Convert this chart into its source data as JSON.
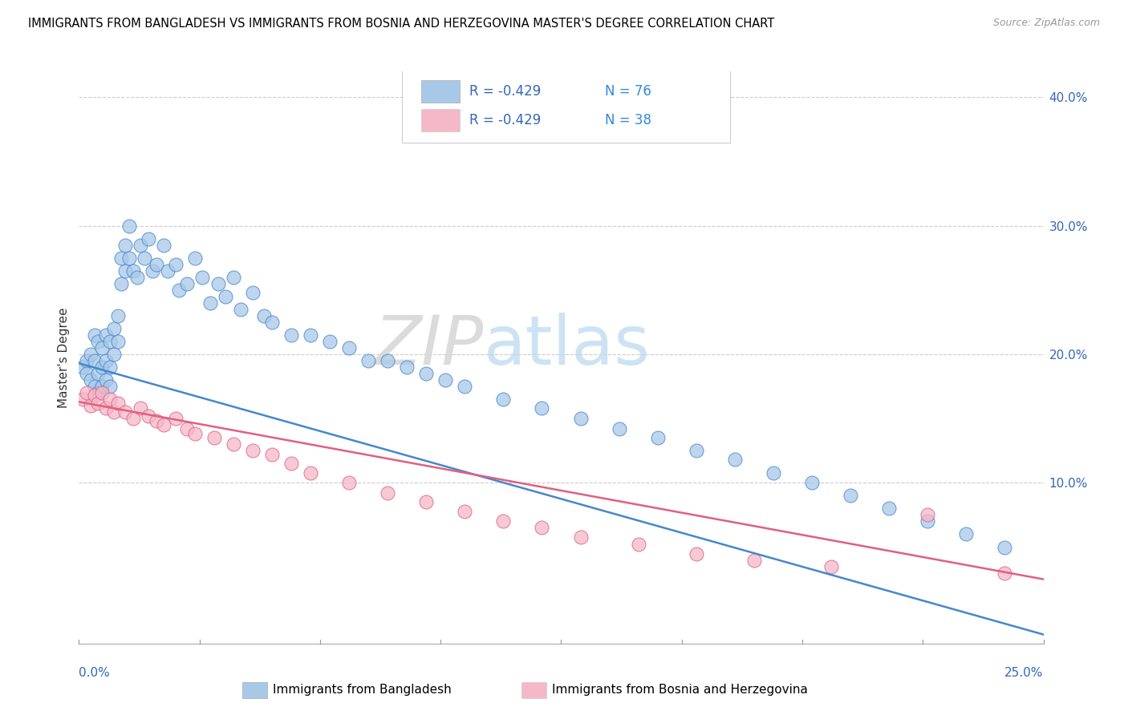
{
  "title": "IMMIGRANTS FROM BANGLADESH VS IMMIGRANTS FROM BOSNIA AND HERZEGOVINA MASTER'S DEGREE CORRELATION CHART",
  "source": "Source: ZipAtlas.com",
  "ylabel": "Master's Degree",
  "right_yticklabels": [
    "",
    "10.0%",
    "20.0%",
    "30.0%",
    "40.0%"
  ],
  "right_yticks": [
    0.0,
    0.1,
    0.2,
    0.3,
    0.4
  ],
  "xmin": 0.0,
  "xmax": 0.25,
  "ymin": -0.025,
  "ymax": 0.42,
  "legend_label1": "Immigrants from Bangladesh",
  "legend_label2": "Immigrants from Bosnia and Herzegovina",
  "color_blue": "#a8c8e8",
  "color_pink": "#f4b8c8",
  "color_blue_line": "#4488cc",
  "color_pink_line": "#e06080",
  "color_r_text": "#3366bb",
  "color_n_text": "#3388dd",
  "watermark_zip": "ZIP",
  "watermark_atlas": "atlas",
  "blue_line_x": [
    0.0,
    0.25
  ],
  "blue_line_y": [
    0.193,
    -0.018
  ],
  "pink_line_x": [
    0.0,
    0.25
  ],
  "pink_line_y": [
    0.163,
    0.025
  ],
  "blue_x": [
    0.001,
    0.002,
    0.002,
    0.003,
    0.003,
    0.004,
    0.004,
    0.004,
    0.005,
    0.005,
    0.005,
    0.006,
    0.006,
    0.006,
    0.007,
    0.007,
    0.007,
    0.008,
    0.008,
    0.008,
    0.009,
    0.009,
    0.01,
    0.01,
    0.011,
    0.011,
    0.012,
    0.012,
    0.013,
    0.013,
    0.014,
    0.015,
    0.016,
    0.017,
    0.018,
    0.019,
    0.02,
    0.022,
    0.023,
    0.025,
    0.026,
    0.028,
    0.03,
    0.032,
    0.034,
    0.036,
    0.038,
    0.04,
    0.042,
    0.045,
    0.048,
    0.05,
    0.055,
    0.06,
    0.065,
    0.07,
    0.075,
    0.08,
    0.085,
    0.09,
    0.095,
    0.1,
    0.11,
    0.12,
    0.13,
    0.14,
    0.15,
    0.16,
    0.17,
    0.18,
    0.19,
    0.2,
    0.21,
    0.22,
    0.23,
    0.24
  ],
  "blue_y": [
    0.19,
    0.195,
    0.185,
    0.2,
    0.18,
    0.215,
    0.195,
    0.175,
    0.21,
    0.185,
    0.17,
    0.205,
    0.19,
    0.175,
    0.215,
    0.195,
    0.18,
    0.21,
    0.19,
    0.175,
    0.22,
    0.2,
    0.23,
    0.21,
    0.275,
    0.255,
    0.285,
    0.265,
    0.3,
    0.275,
    0.265,
    0.26,
    0.285,
    0.275,
    0.29,
    0.265,
    0.27,
    0.285,
    0.265,
    0.27,
    0.25,
    0.255,
    0.275,
    0.26,
    0.24,
    0.255,
    0.245,
    0.26,
    0.235,
    0.248,
    0.23,
    0.225,
    0.215,
    0.215,
    0.21,
    0.205,
    0.195,
    0.195,
    0.19,
    0.185,
    0.18,
    0.175,
    0.165,
    0.158,
    0.15,
    0.142,
    0.135,
    0.125,
    0.118,
    0.108,
    0.1,
    0.09,
    0.08,
    0.07,
    0.06,
    0.05
  ],
  "pink_x": [
    0.001,
    0.002,
    0.003,
    0.004,
    0.005,
    0.006,
    0.007,
    0.008,
    0.009,
    0.01,
    0.012,
    0.014,
    0.016,
    0.018,
    0.02,
    0.022,
    0.025,
    0.028,
    0.03,
    0.035,
    0.04,
    0.045,
    0.05,
    0.055,
    0.06,
    0.07,
    0.08,
    0.09,
    0.1,
    0.11,
    0.12,
    0.13,
    0.145,
    0.16,
    0.175,
    0.195,
    0.22,
    0.24
  ],
  "pink_y": [
    0.165,
    0.17,
    0.16,
    0.168,
    0.162,
    0.17,
    0.158,
    0.165,
    0.155,
    0.162,
    0.155,
    0.15,
    0.158,
    0.152,
    0.148,
    0.145,
    0.15,
    0.142,
    0.138,
    0.135,
    0.13,
    0.125,
    0.122,
    0.115,
    0.108,
    0.1,
    0.092,
    0.085,
    0.078,
    0.07,
    0.065,
    0.058,
    0.052,
    0.045,
    0.04,
    0.035,
    0.075,
    0.03
  ]
}
